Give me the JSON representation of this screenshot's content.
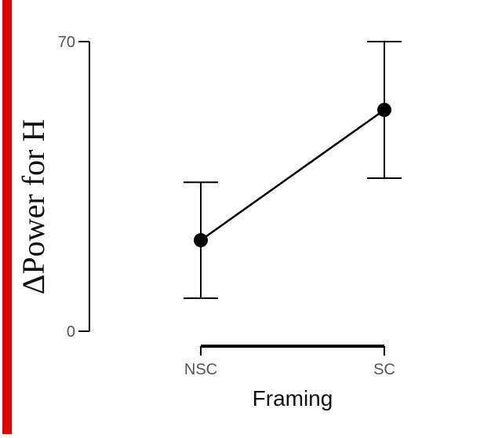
{
  "chart_data": {
    "type": "line",
    "categories": [
      "NSC",
      "SC"
    ],
    "series": [
      {
        "values": [
          22,
          53.5
        ],
        "error_low": [
          8,
          37
        ],
        "error_high": [
          36,
          70
        ]
      }
    ],
    "xlabel": "Framing",
    "ylabel": "ΔPower for H",
    "ylim": [
      0,
      70
    ],
    "yticks": [
      0,
      70
    ],
    "ytick_labels": [
      "0",
      "70"
    ],
    "grid": false,
    "legend": "none"
  },
  "colors": {
    "line": "#000000",
    "marker": "#000000",
    "frame_accent": "#e00000"
  }
}
